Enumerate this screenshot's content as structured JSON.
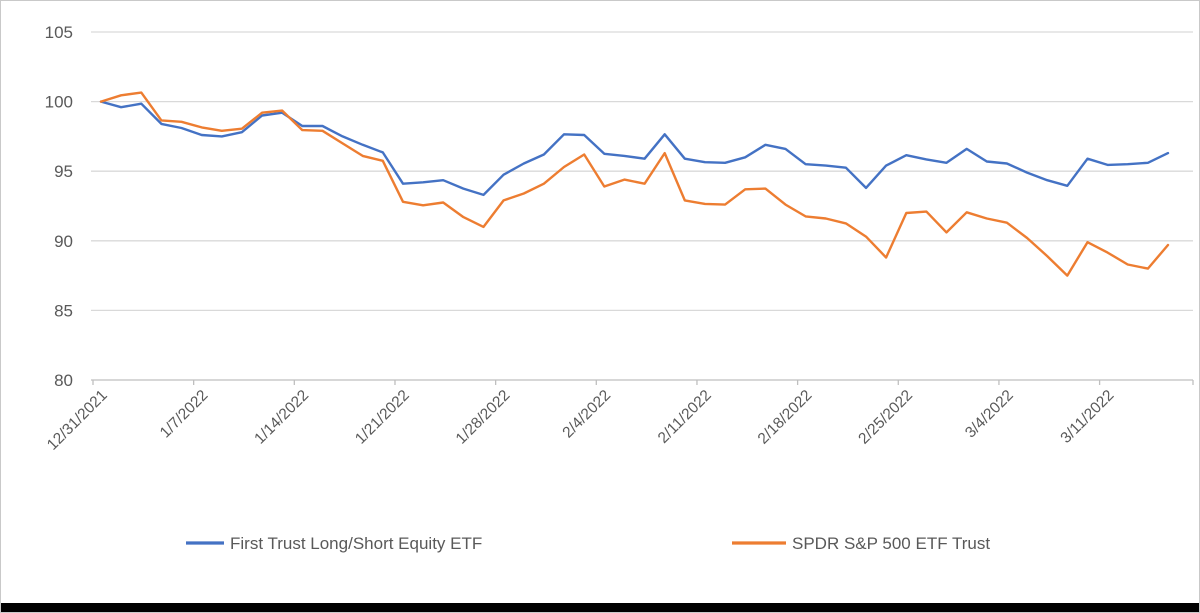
{
  "chart_data": {
    "type": "line",
    "title": "",
    "xlabel": "",
    "ylabel": "",
    "ylim": [
      80,
      105
    ],
    "yticks": [
      105,
      100,
      95,
      90,
      85,
      80
    ],
    "grid": true,
    "legend_position": "bottom",
    "x_tick_labels": [
      "12/31/2021",
      "1/7/2022",
      "1/14/2022",
      "1/21/2022",
      "1/28/2022",
      "2/4/2022",
      "2/11/2022",
      "2/18/2022",
      "2/25/2022",
      "3/4/2022",
      "3/11/2022"
    ],
    "x_tick_every": 5,
    "dates": [
      "12/31/2021",
      "1/3/2022",
      "1/4/2022",
      "1/5/2022",
      "1/6/2022",
      "1/7/2022",
      "1/10/2022",
      "1/11/2022",
      "1/12/2022",
      "1/13/2022",
      "1/14/2022",
      "1/17/2022",
      "1/18/2022",
      "1/19/2022",
      "1/20/2022",
      "1/21/2022",
      "1/24/2022",
      "1/25/2022",
      "1/26/2022",
      "1/27/2022",
      "1/28/2022",
      "1/31/2022",
      "2/1/2022",
      "2/2/2022",
      "2/3/2022",
      "2/4/2022",
      "2/7/2022",
      "2/8/2022",
      "2/9/2022",
      "2/10/2022",
      "2/11/2022",
      "2/14/2022",
      "2/15/2022",
      "2/16/2022",
      "2/17/2022",
      "2/18/2022",
      "2/21/2022",
      "2/22/2022",
      "2/23/2022",
      "2/24/2022",
      "2/25/2022",
      "2/28/2022",
      "3/1/2022",
      "3/2/2022",
      "3/3/2022",
      "3/4/2022",
      "3/7/2022",
      "3/8/2022",
      "3/9/2022",
      "3/10/2022",
      "3/11/2022",
      "3/14/2022",
      "3/15/2022",
      "3/16/2022"
    ],
    "series": [
      {
        "name": "First Trust Long/Short Equity ETF",
        "color": "#4472C4",
        "values": [
          100.0,
          99.6,
          99.85,
          98.4,
          98.1,
          97.6,
          97.5,
          97.8,
          99.0,
          99.2,
          98.25,
          98.25,
          97.5,
          96.9,
          96.35,
          94.1,
          94.2,
          94.35,
          93.75,
          93.3,
          94.75,
          95.55,
          96.2,
          97.65,
          97.6,
          96.25,
          96.1,
          95.9,
          97.65,
          95.9,
          95.65,
          95.6,
          96.0,
          96.9,
          96.6,
          95.5,
          95.4,
          95.25,
          93.8,
          95.4,
          96.15,
          95.85,
          95.6,
          96.6,
          95.7,
          95.55,
          94.9,
          94.35,
          93.95,
          95.9,
          95.45,
          95.5,
          95.6,
          96.3
        ]
      },
      {
        "name": "SPDR S&P 500 ETF Trust",
        "color": "#ED7D31",
        "values": [
          100.0,
          100.45,
          100.65,
          98.65,
          98.55,
          98.15,
          97.9,
          98.05,
          99.2,
          99.35,
          97.95,
          97.9,
          97.0,
          96.1,
          95.75,
          92.8,
          92.55,
          92.75,
          91.7,
          91.0,
          92.9,
          93.4,
          94.1,
          95.3,
          96.2,
          93.9,
          94.4,
          94.1,
          96.3,
          92.9,
          92.65,
          92.6,
          93.7,
          93.75,
          92.6,
          91.75,
          91.6,
          91.25,
          90.3,
          88.8,
          92.0,
          92.1,
          90.6,
          92.05,
          91.6,
          91.3,
          90.2,
          88.9,
          87.5,
          89.9,
          89.15,
          88.3,
          88.0,
          89.7
        ]
      }
    ]
  },
  "style": {
    "gridline_color": "#d9d9d9",
    "axis_line_color": "#bfbfbf",
    "axis_text_color": "#595959",
    "legend_text_color": "#595959",
    "background_color": "#ffffff",
    "bottom_bar_color": "#000000"
  }
}
